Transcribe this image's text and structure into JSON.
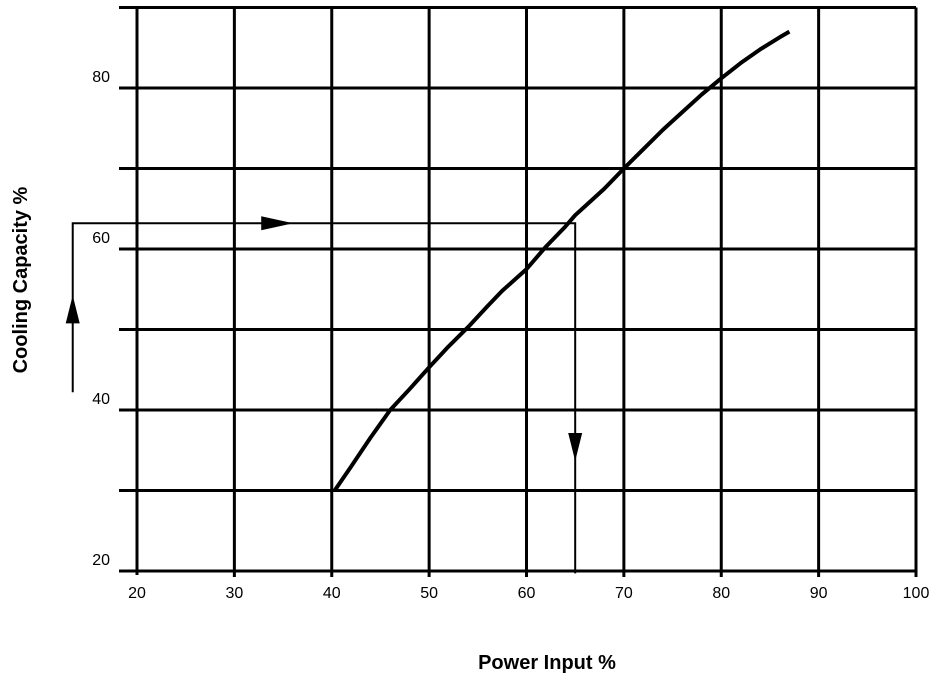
{
  "chart_data": {
    "type": "line",
    "title": "",
    "xlabel": "Power Input %",
    "ylabel": "Cooling  Capacity %",
    "xlim": [
      20,
      100
    ],
    "ylim": [
      20,
      90
    ],
    "x_ticks": [
      20,
      30,
      40,
      50,
      60,
      70,
      80,
      90,
      100
    ],
    "y_ticks": [
      20,
      40,
      60,
      80
    ],
    "x_tick_labels": [
      "20",
      "30",
      "40",
      "50",
      "60",
      "70",
      "80",
      "90",
      "100"
    ],
    "y_tick_labels": [
      "20",
      "40",
      "60",
      "80"
    ],
    "grid": true,
    "legend": "none",
    "series": [
      {
        "x": [
          40.3,
          42,
          44,
          46,
          48,
          50,
          52,
          54,
          56,
          57.5,
          60,
          62,
          64,
          65,
          66,
          68,
          70,
          72,
          74,
          76,
          78,
          80,
          82,
          84,
          86,
          87
        ],
        "y": [
          30,
          33,
          36.6,
          40,
          42.6,
          45.3,
          47.9,
          50.3,
          52.9,
          54.8,
          57.5,
          60.3,
          62.8,
          64.2,
          65.3,
          67.5,
          70,
          72.4,
          74.8,
          77,
          79.2,
          81.2,
          83.1,
          84.8,
          86.3,
          87
        ]
      }
    ],
    "annotations": [
      {
        "type": "guide-path",
        "points": [
          [
            13.4,
            42.2
          ],
          [
            13.4,
            63.2
          ],
          [
            65,
            63.2
          ],
          [
            65,
            19.7
          ]
        ],
        "arrows": [
          {
            "x": 13.4,
            "y": 52.5,
            "direction": "up"
          },
          {
            "x": 34.4,
            "y": 63.2,
            "direction": "right"
          },
          {
            "x": 65,
            "y": 35.4,
            "direction": "down"
          }
        ]
      }
    ]
  }
}
